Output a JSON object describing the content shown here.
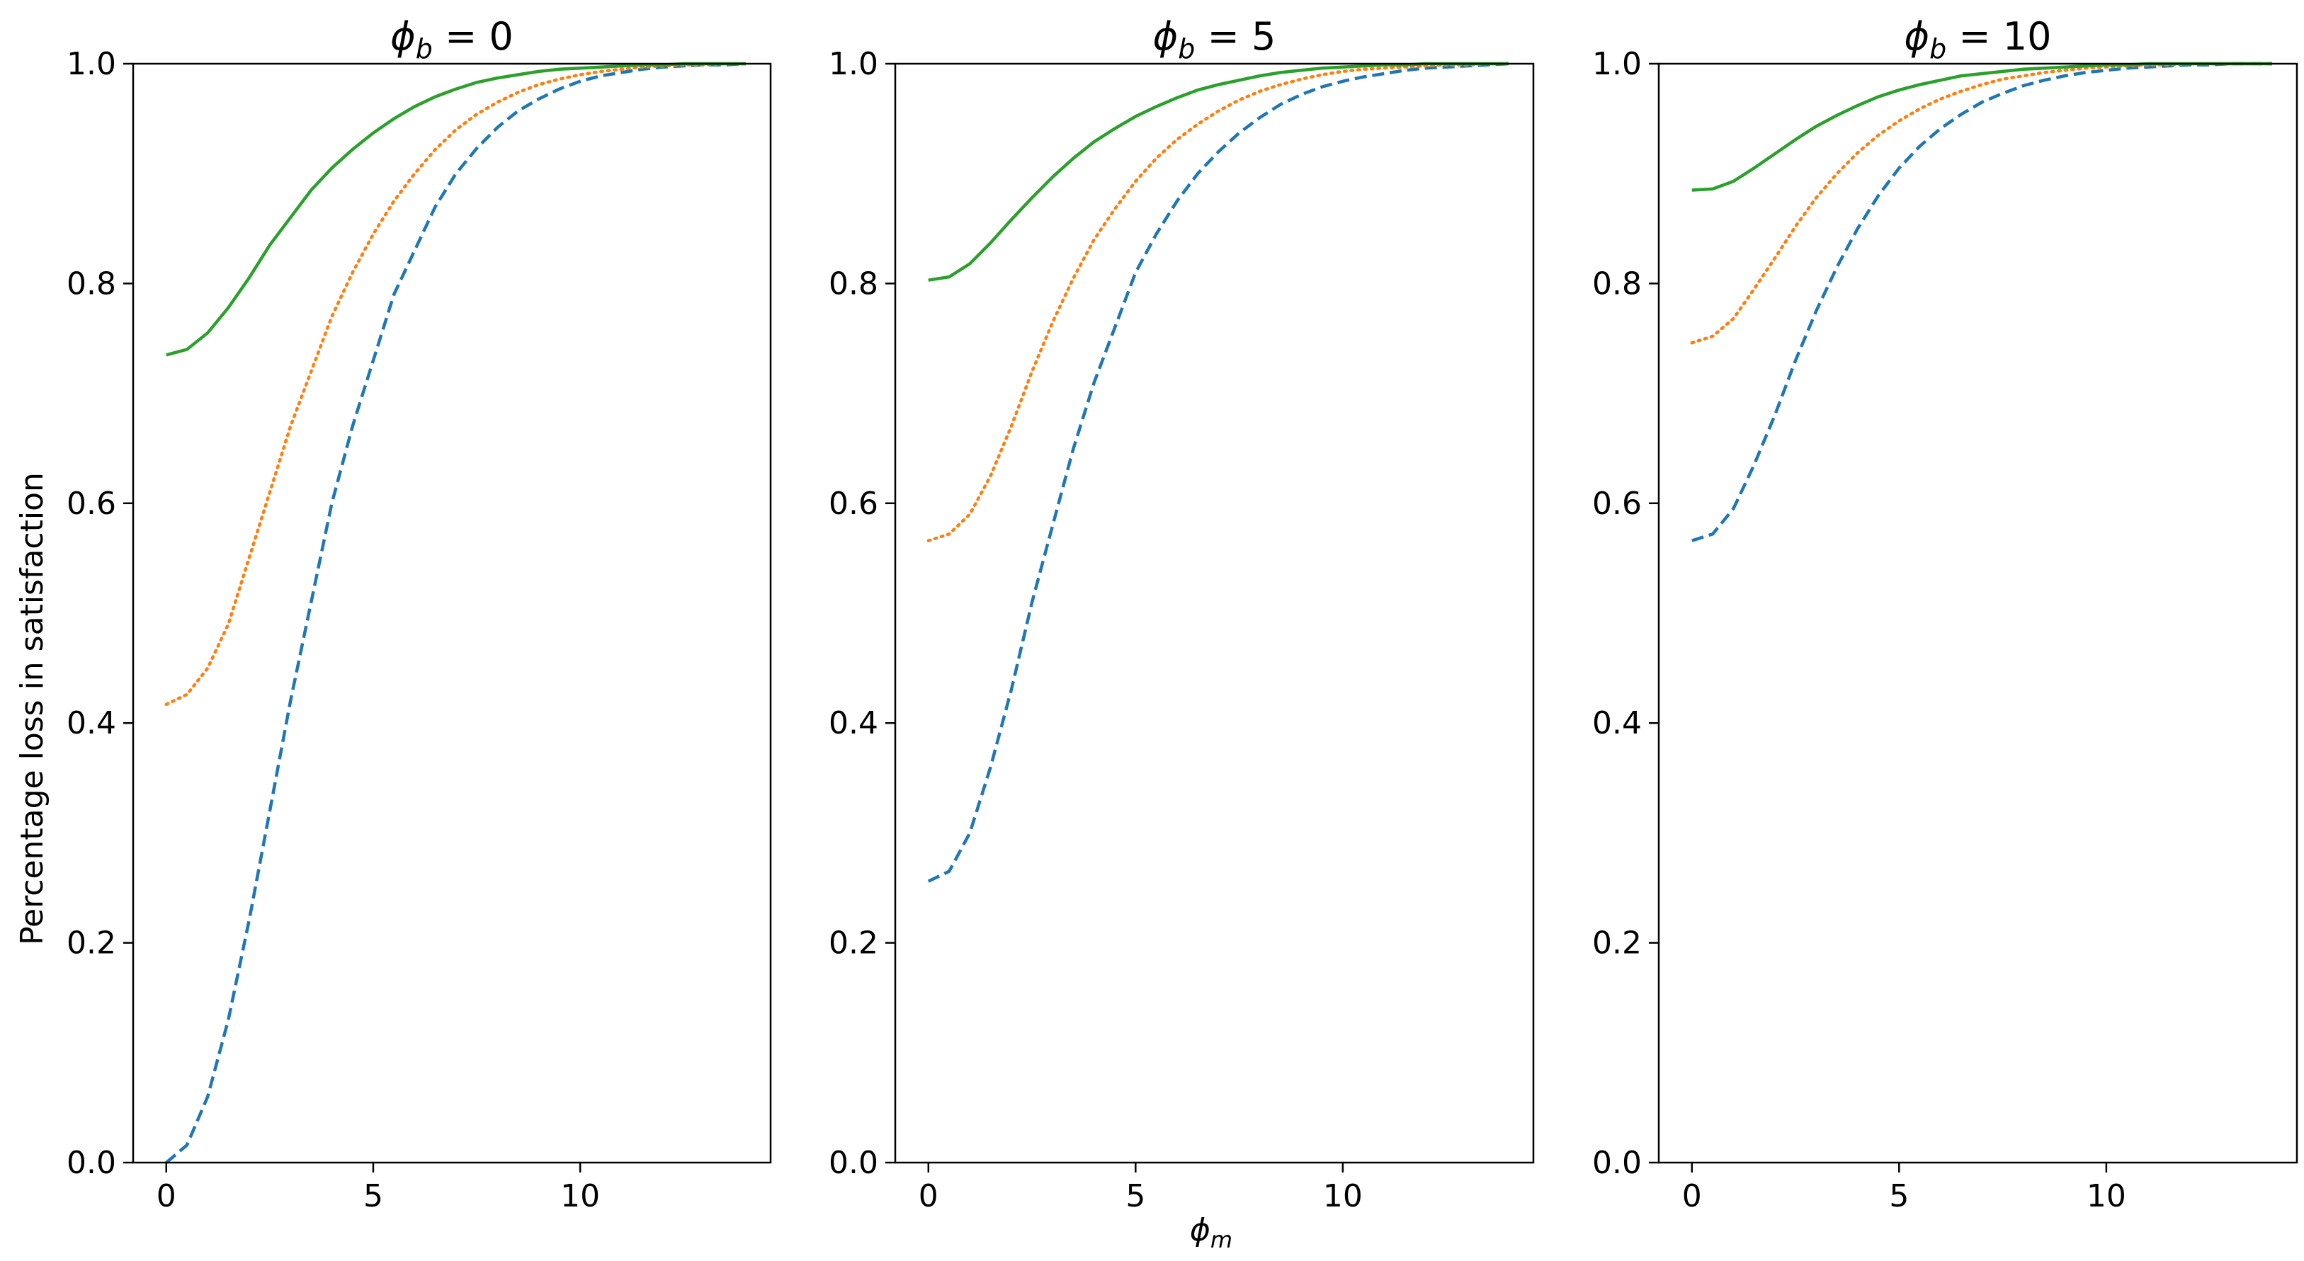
{
  "figure": {
    "ylabel": "Percentage loss in satisfaction",
    "xlabel_base": "ϕ",
    "xlabel_sub": "m"
  },
  "chart_data": [
    {
      "type": "line",
      "title_base": "ϕ",
      "title_sub": "b",
      "title_rest": " = 0",
      "xlim": [
        -0.8,
        14.6
      ],
      "ylim": [
        0.0,
        1.0
      ],
      "xticks": [
        0,
        5,
        10
      ],
      "xtick_labels": [
        "0",
        "5",
        "10"
      ],
      "yticks": [
        0.0,
        0.2,
        0.4,
        0.6,
        0.8,
        1.0
      ],
      "ytick_labels": [
        "0.0",
        "0.2",
        "0.4",
        "0.6",
        "0.8",
        "1.0"
      ],
      "grid": false,
      "x": [
        0,
        0.5,
        1,
        1.5,
        2,
        2.5,
        3,
        3.5,
        4,
        4.5,
        5,
        5.5,
        6,
        6.5,
        7,
        7.5,
        8,
        8.5,
        9,
        9.5,
        10,
        10.5,
        11,
        11.5,
        12,
        12.5,
        13,
        13.5,
        14
      ],
      "series": [
        {
          "color": "#1f77b4",
          "dash": "dashed",
          "values": [
            0.0,
            0.016,
            0.06,
            0.13,
            0.22,
            0.32,
            0.42,
            0.51,
            0.6,
            0.67,
            0.73,
            0.79,
            0.83,
            0.87,
            0.9,
            0.923,
            0.942,
            0.957,
            0.968,
            0.977,
            0.984,
            0.989,
            0.992,
            0.995,
            0.997,
            0.998,
            0.999,
            0.999,
            1.0
          ]
        },
        {
          "color": "#ff7f0e",
          "dash": "dotted",
          "values": [
            0.417,
            0.426,
            0.45,
            0.49,
            0.55,
            0.61,
            0.67,
            0.72,
            0.77,
            0.81,
            0.845,
            0.875,
            0.9,
            0.922,
            0.94,
            0.954,
            0.965,
            0.974,
            0.981,
            0.986,
            0.99,
            0.993,
            0.995,
            0.997,
            0.998,
            0.999,
            0.999,
            1.0,
            1.0
          ]
        },
        {
          "color": "#2ca02c",
          "dash": "solid",
          "values": [
            0.735,
            0.74,
            0.755,
            0.778,
            0.805,
            0.835,
            0.86,
            0.885,
            0.905,
            0.922,
            0.937,
            0.95,
            0.961,
            0.97,
            0.977,
            0.983,
            0.987,
            0.99,
            0.993,
            0.995,
            0.996,
            0.997,
            0.998,
            0.999,
            0.999,
            1.0,
            1.0,
            1.0,
            1.0
          ]
        }
      ]
    },
    {
      "type": "line",
      "title_base": "ϕ",
      "title_sub": "b",
      "title_rest": " = 5",
      "xlim": [
        -0.8,
        14.6
      ],
      "ylim": [
        0.0,
        1.0
      ],
      "xticks": [
        0,
        5,
        10
      ],
      "xtick_labels": [
        "0",
        "5",
        "10"
      ],
      "yticks": [
        0.0,
        0.2,
        0.4,
        0.6,
        0.8,
        1.0
      ],
      "ytick_labels": [
        "0.0",
        "0.2",
        "0.4",
        "0.6",
        "0.8",
        "1.0"
      ],
      "grid": false,
      "x": [
        0,
        0.5,
        1,
        1.5,
        2,
        2.5,
        3,
        3.5,
        4,
        4.5,
        5,
        5.5,
        6,
        6.5,
        7,
        7.5,
        8,
        8.5,
        9,
        9.5,
        10,
        10.5,
        11,
        11.5,
        12,
        12.5,
        13,
        13.5,
        14
      ],
      "series": [
        {
          "color": "#1f77b4",
          "dash": "dashed",
          "values": [
            0.256,
            0.265,
            0.3,
            0.36,
            0.43,
            0.51,
            0.58,
            0.65,
            0.71,
            0.76,
            0.81,
            0.845,
            0.875,
            0.9,
            0.92,
            0.937,
            0.951,
            0.963,
            0.972,
            0.979,
            0.984,
            0.988,
            0.991,
            0.994,
            0.996,
            0.997,
            0.998,
            0.999,
            1.0
          ]
        },
        {
          "color": "#ff7f0e",
          "dash": "dotted",
          "values": [
            0.566,
            0.572,
            0.59,
            0.625,
            0.67,
            0.72,
            0.765,
            0.805,
            0.84,
            0.868,
            0.893,
            0.914,
            0.931,
            0.945,
            0.957,
            0.967,
            0.975,
            0.981,
            0.986,
            0.99,
            0.993,
            0.995,
            0.996,
            0.997,
            0.998,
            0.999,
            0.999,
            1.0,
            1.0
          ]
        },
        {
          "color": "#2ca02c",
          "dash": "solid",
          "values": [
            0.803,
            0.806,
            0.818,
            0.837,
            0.858,
            0.878,
            0.897,
            0.914,
            0.929,
            0.941,
            0.952,
            0.961,
            0.969,
            0.976,
            0.981,
            0.985,
            0.989,
            0.992,
            0.994,
            0.996,
            0.997,
            0.998,
            0.999,
            0.999,
            1.0,
            1.0,
            1.0,
            1.0,
            1.0
          ]
        }
      ]
    },
    {
      "type": "line",
      "title_base": "ϕ",
      "title_sub": "b",
      "title_rest": " = 10",
      "xlim": [
        -0.8,
        14.6
      ],
      "ylim": [
        0.0,
        1.0
      ],
      "xticks": [
        0,
        5,
        10
      ],
      "xtick_labels": [
        "0",
        "5",
        "10"
      ],
      "yticks": [
        0.0,
        0.2,
        0.4,
        0.6,
        0.8,
        1.0
      ],
      "ytick_labels": [
        "0.0",
        "0.2",
        "0.4",
        "0.6",
        "0.8",
        "1.0"
      ],
      "grid": false,
      "x": [
        0,
        0.5,
        1,
        1.5,
        2,
        2.5,
        3,
        3.5,
        4,
        4.5,
        5,
        5.5,
        6,
        6.5,
        7,
        7.5,
        8,
        8.5,
        9,
        9.5,
        10,
        10.5,
        11,
        11.5,
        12,
        12.5,
        13,
        13.5,
        14
      ],
      "series": [
        {
          "color": "#1f77b4",
          "dash": "dashed",
          "values": [
            0.566,
            0.572,
            0.595,
            0.635,
            0.68,
            0.73,
            0.775,
            0.815,
            0.85,
            0.88,
            0.905,
            0.925,
            0.941,
            0.954,
            0.965,
            0.973,
            0.98,
            0.985,
            0.989,
            0.992,
            0.994,
            0.996,
            0.997,
            0.998,
            0.999,
            0.999,
            1.0,
            1.0,
            1.0
          ]
        },
        {
          "color": "#ff7f0e",
          "dash": "dotted",
          "values": [
            0.746,
            0.752,
            0.768,
            0.795,
            0.823,
            0.852,
            0.878,
            0.9,
            0.919,
            0.935,
            0.948,
            0.959,
            0.968,
            0.975,
            0.981,
            0.986,
            0.989,
            0.992,
            0.994,
            0.996,
            0.997,
            0.998,
            0.999,
            0.999,
            1.0,
            1.0,
            1.0,
            1.0,
            1.0
          ]
        },
        {
          "color": "#2ca02c",
          "dash": "solid",
          "values": [
            0.885,
            0.886,
            0.893,
            0.905,
            0.918,
            0.931,
            0.943,
            0.953,
            0.962,
            0.97,
            0.976,
            0.981,
            0.985,
            0.989,
            0.991,
            0.993,
            0.995,
            0.996,
            0.997,
            0.998,
            0.999,
            0.999,
            1.0,
            1.0,
            1.0,
            1.0,
            1.0,
            1.0,
            1.0
          ]
        }
      ]
    }
  ]
}
